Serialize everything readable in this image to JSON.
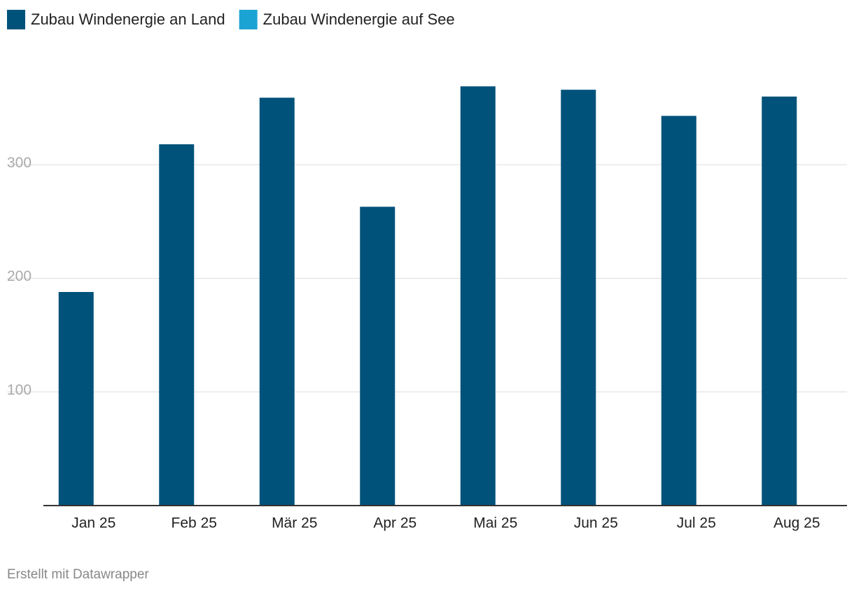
{
  "chart_data": {
    "type": "bar",
    "categories": [
      "Jan 25",
      "Feb 25",
      "Mär 25",
      "Apr 25",
      "Mai 25",
      "Jun 25",
      "Jul 25",
      "Aug 25"
    ],
    "series": [
      {
        "name": "Zubau Windenergie an Land",
        "color": "#00527a",
        "values": [
          188,
          318,
          359,
          263,
          369,
          366,
          343,
          360
        ]
      },
      {
        "name": "Zubau Windenergie auf See",
        "color": "#1ba3d3",
        "values": [
          0,
          0,
          0,
          0,
          0,
          0,
          0,
          0
        ]
      }
    ],
    "ylim": [
      0,
      400
    ],
    "yticks": [
      100,
      200,
      300
    ],
    "grid": true,
    "source": "Erstellt mit Datawrapper"
  }
}
